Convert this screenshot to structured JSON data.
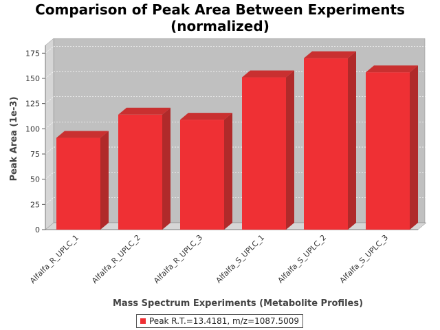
{
  "chart_data": {
    "type": "bar",
    "title": "Comparison of Peak Area Between Experiments",
    "subtitle": "(normalized)",
    "xlabel": "Mass Spectrum Experiments (Metabolite Profiles)",
    "ylabel": "Peak Area (1e-3)",
    "categories": [
      "Alfalfa_R_UPLC_1",
      "Alfalfa_R_UPLC_2",
      "Alfalfa_R_UPLC_3",
      "Alfalfa_S_UPLC_1",
      "Alfalfa_S_UPLC_2",
      "Alfalfa_S_UPLC_3"
    ],
    "series": [
      {
        "name": "Peak R.T.=13.4181, m/z=1087.5009",
        "values": [
          91,
          114,
          109,
          151,
          170,
          156
        ]
      }
    ],
    "ylim": [
      0,
      180
    ],
    "yticks": [
      "0",
      "25",
      "50",
      "75",
      "100",
      "125",
      "150",
      "175"
    ],
    "grid": true,
    "legend_position": "bottom",
    "colors": {
      "bar_front": "#ef3034",
      "bar_side": "#b02a2a",
      "bar_top": "#c93030",
      "plot_back": "#c0c0c0",
      "plot_left_wall": "#d6d6d6",
      "plot_floor": "#d6d6d6"
    }
  }
}
